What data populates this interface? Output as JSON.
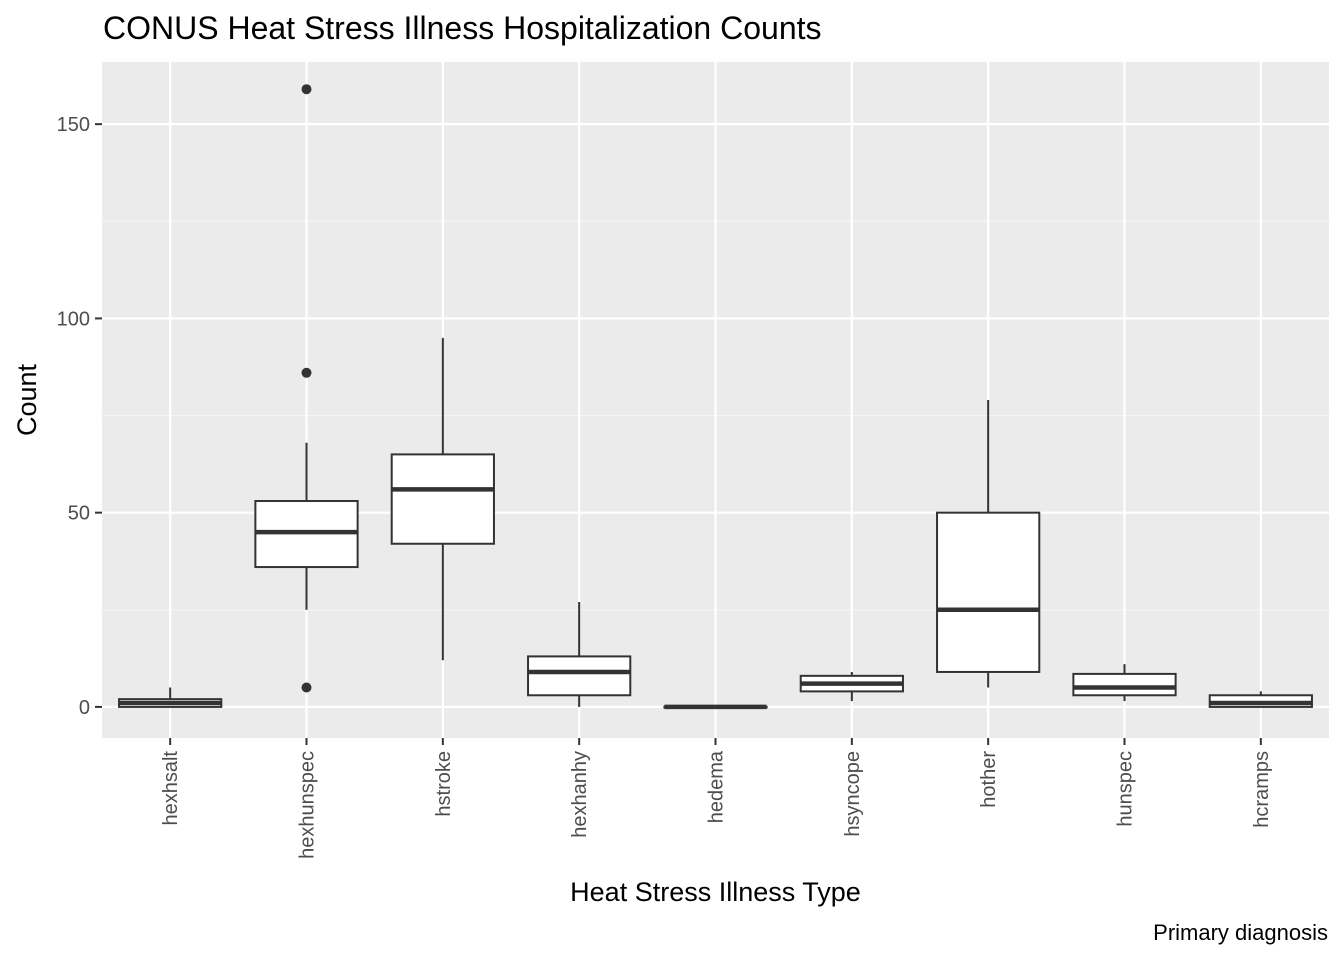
{
  "chart_data": {
    "type": "boxplot",
    "title": "CONUS Heat Stress Illness Hospitalization Counts",
    "caption": "Primary diagnosis",
    "xlabel": "Heat Stress Illness Type",
    "ylabel": "Count",
    "ylim": [
      -8,
      166
    ],
    "yticks": [
      0,
      50,
      100,
      150
    ],
    "grid": true,
    "categories": [
      "hexhsalt",
      "hexhunspec",
      "hstroke",
      "hexhanhy",
      "hedema",
      "hsyncope",
      "hother",
      "hunspec",
      "hcramps"
    ],
    "boxes": [
      {
        "category": "hexhsalt",
        "min": 0,
        "q1": 0,
        "median": 1,
        "q3": 2,
        "max": 5,
        "outliers": []
      },
      {
        "category": "hexhunspec",
        "min": 25,
        "q1": 36,
        "median": 45,
        "q3": 53,
        "max": 68,
        "outliers": [
          159,
          86,
          5
        ]
      },
      {
        "category": "hstroke",
        "min": 12,
        "q1": 42,
        "median": 56,
        "q3": 65,
        "max": 95,
        "outliers": []
      },
      {
        "category": "hexhanhy",
        "min": 0,
        "q1": 3,
        "median": 9,
        "q3": 13,
        "max": 27,
        "outliers": []
      },
      {
        "category": "hedema",
        "min": 0,
        "q1": 0,
        "median": 0,
        "q3": 0,
        "max": 0,
        "outliers": []
      },
      {
        "category": "hsyncope",
        "min": 1.5,
        "q1": 4,
        "median": 6,
        "q3": 8,
        "max": 9,
        "outliers": []
      },
      {
        "category": "hother",
        "min": 5,
        "q1": 9,
        "median": 25,
        "q3": 50,
        "max": 79,
        "outliers": []
      },
      {
        "category": "hunspec",
        "min": 1.5,
        "q1": 3,
        "median": 5,
        "q3": 8.5,
        "max": 11,
        "outliers": []
      },
      {
        "category": "hcramps",
        "min": 0,
        "q1": 0,
        "median": 1,
        "q3": 3,
        "max": 4,
        "outliers": []
      }
    ]
  },
  "colors": {
    "panel_background": "#ebebeb",
    "grid_major": "#ffffff",
    "grid_minor": "#f5f5f5",
    "box_fill": "#ffffff",
    "box_stroke": "#333333",
    "tick_text": "#4d4d4d"
  }
}
